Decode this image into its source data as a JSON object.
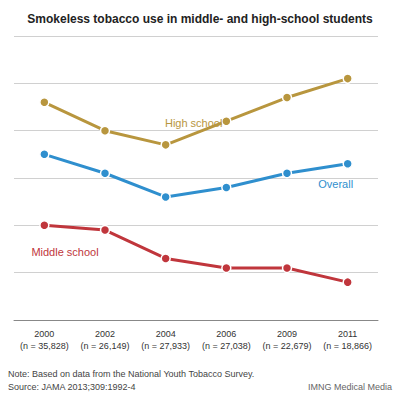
{
  "chart_data": {
    "type": "line",
    "title": "Smokeless tobacco use in middle- and high-school students",
    "categories": [
      "2000\n(n = 35,828)",
      "2002\n(n = 26,149)",
      "2004\n(n = 27,933)",
      "2006\n(n = 27,038)",
      "2009\n(n = 22,679)",
      "2011\n(n = 18,866)"
    ],
    "series": [
      {
        "name": "High school",
        "color": "#b8963e",
        "values": [
          5.6,
          5.0,
          4.7,
          5.2,
          5.7,
          6.1
        ]
      },
      {
        "name": "Overall",
        "color": "#2f8fce",
        "values": [
          4.5,
          4.1,
          3.6,
          3.8,
          4.1,
          4.3
        ]
      },
      {
        "name": "Middle school",
        "color": "#c0363c",
        "values": [
          3.0,
          2.9,
          2.3,
          2.1,
          2.1,
          1.8
        ]
      }
    ],
    "ylim": [
      1,
      7
    ],
    "yticks": [
      1,
      2,
      3,
      4,
      5,
      6,
      7
    ],
    "grid": true,
    "tick_labels": "x",
    "marker": "circle",
    "line_style": "solid",
    "notes": [
      "Note: Based on data from the National Youth Tobacco Survey.",
      "Source: JAMA 2013;309:1992-4"
    ],
    "credit": "IMNG Medical Media"
  }
}
